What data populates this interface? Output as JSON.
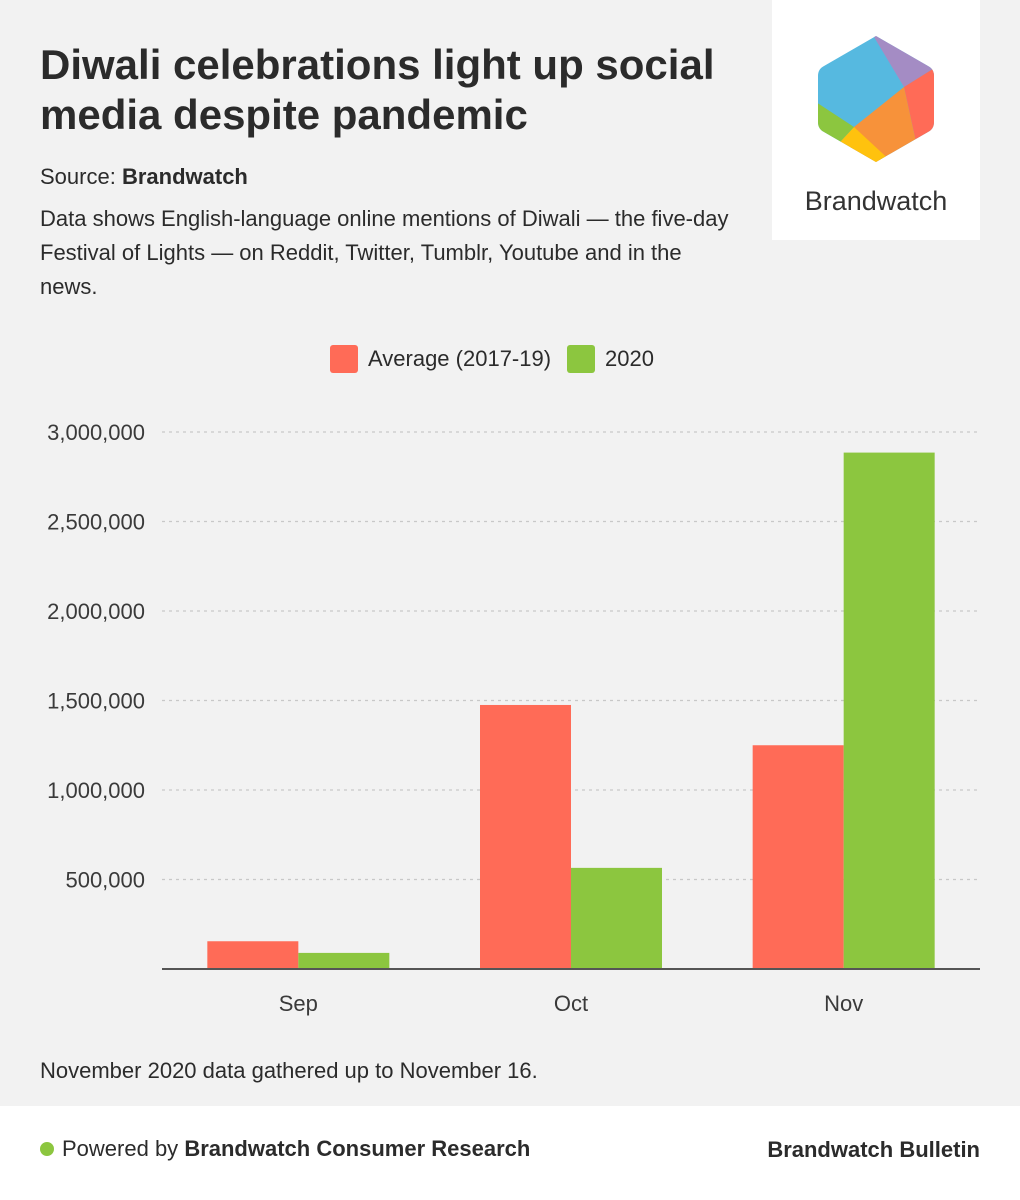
{
  "header": {
    "title": "Diwali celebrations light up social media despite pandemic",
    "source_label": "Source:",
    "source_name": "Brandwatch",
    "description": "Data shows English-language online mentions of Diwali — the five-day Festival of Lights — on Reddit, Twitter, Tumblr, Youtube and in the news."
  },
  "logo": {
    "text": "Brandwatch",
    "icon": "brandwatch-hexagon-logo"
  },
  "colors": {
    "average": "#ff6b57",
    "y2020": "#8cc63f",
    "grid": "#c8c8c8",
    "axis": "#555555"
  },
  "chart_data": {
    "type": "bar",
    "categories": [
      "Sep",
      "Oct",
      "Nov"
    ],
    "series": [
      {
        "name": "Average (2017-19)",
        "values": [
          155000,
          1475000,
          1250000
        ]
      },
      {
        "name": "2020",
        "values": [
          90000,
          565000,
          2885000
        ]
      }
    ],
    "title": "",
    "xlabel": "",
    "ylabel": "",
    "ylim": [
      0,
      3000000
    ],
    "yticks": [
      500000,
      1000000,
      1500000,
      2000000,
      2500000,
      3000000
    ],
    "ytick_labels": [
      "500,000",
      "1,000,000",
      "1,500,000",
      "2,000,000",
      "2,500,000",
      "3,000,000"
    ],
    "grid": true,
    "legend_position": "top-center"
  },
  "note": "November 2020 data gathered up to November 16.",
  "footer": {
    "powered_prefix": "Powered by",
    "powered_name": "Brandwatch Consumer Research",
    "bulletin": "Brandwatch Bulletin"
  }
}
